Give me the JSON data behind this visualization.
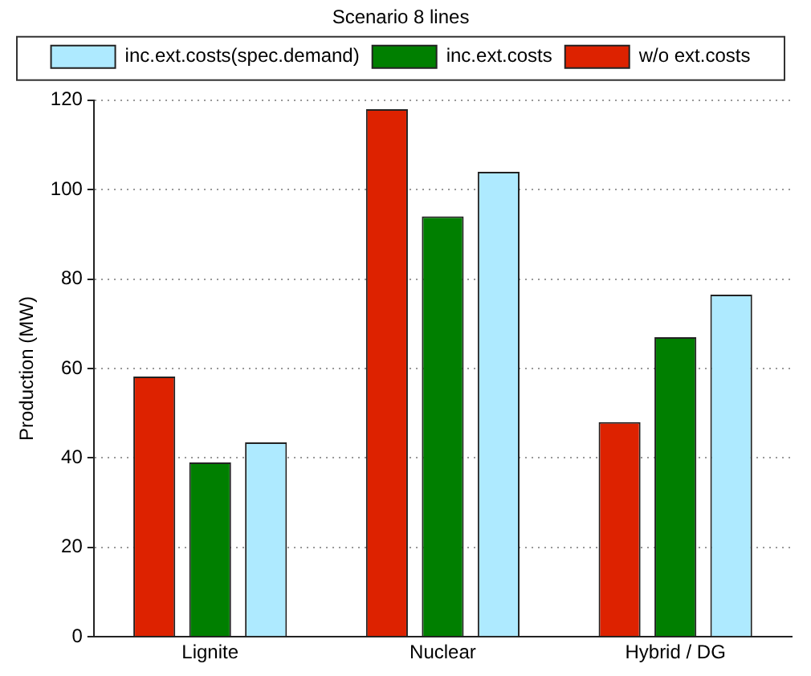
{
  "chart_data": {
    "type": "bar",
    "title": "Scenario 8 lines",
    "ylabel": "Production (MW)",
    "categories": [
      "Lignite",
      "Nuclear",
      "Hybrid / DG"
    ],
    "series": [
      {
        "name": "w/o ext.costs",
        "color": "#dd2200",
        "values": [
          58.2,
          118,
          48
        ]
      },
      {
        "name": "inc.ext.costs",
        "color": "#007f00",
        "values": [
          39,
          94,
          67
        ]
      },
      {
        "name": "inc.ext.costs(spec.demand)",
        "color": "#aeeaff",
        "values": [
          43.5,
          104,
          76.5
        ]
      }
    ],
    "ylim": [
      0,
      120
    ],
    "yticks": [
      0,
      20,
      40,
      60,
      80,
      100,
      120
    ],
    "grid": "y",
    "legend": "top"
  }
}
